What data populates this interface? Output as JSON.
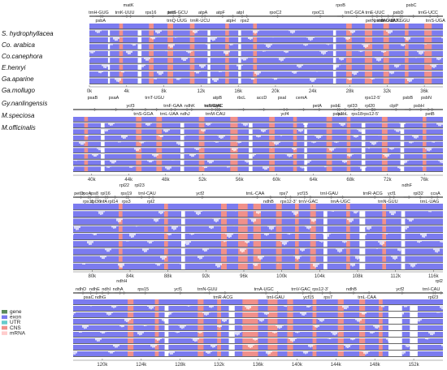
{
  "species": [
    "S. hydrophyllacea",
    "Co. arabica",
    "Co.canephora",
    "E.henryi",
    "Ga.aparine",
    "Ga.mollugo",
    "Gy.nanlingensis",
    "M.speciosa",
    "M.officinalis"
  ],
  "legend": [
    {
      "label": "gene",
      "color": "#5a8a5a"
    },
    {
      "label": "exon",
      "color": "#7b7bef"
    },
    {
      "label": "UTR",
      "color": "#66cccc"
    },
    {
      "label": "CNS",
      "color": "#f0908a"
    },
    {
      "label": "mRNA",
      "color": "#ffcccc"
    }
  ],
  "colors": {
    "exon": "#7b7bef",
    "cns": "#f0908a",
    "white": "#ffffff",
    "arrow": "#888888"
  },
  "panels": [
    {
      "id": "p1",
      "ticks": [
        "0k",
        "4k",
        "8k",
        "12k",
        "16k",
        "20k",
        "24k",
        "28k",
        "32k",
        "36k"
      ],
      "tickValues": [
        0,
        4,
        8,
        12,
        16,
        20,
        24,
        28,
        32,
        36
      ],
      "range": [
        0,
        38
      ],
      "genesTop": [
        {
          "n": "trnH-GUG",
          "at": 1
        },
        {
          "n": "trnK-UUU",
          "at": 3.8
        },
        {
          "n": "rps16",
          "at": 6.6
        },
        {
          "n": "psbI",
          "at": 8.8
        },
        {
          "n": "trnS-GCU",
          "at": 9.5
        },
        {
          "n": "atpA",
          "at": 12.2
        },
        {
          "n": "atpF",
          "at": 14.1
        },
        {
          "n": "atpI",
          "at": 16.2
        },
        {
          "n": "rpoC2",
          "at": 20
        },
        {
          "n": "rpoC1",
          "at": 24.6
        },
        {
          "n": "trnC-GCA",
          "at": 28.5
        },
        {
          "n": "trnE-UUC",
          "at": 30.7
        },
        {
          "n": "psbD",
          "at": 33.2
        },
        {
          "n": "trnG-UCC",
          "at": 36.4
        }
      ],
      "genesUpper": [
        {
          "n": "matK",
          "at": 4.2
        },
        {
          "n": "rpoB",
          "at": 27
        },
        {
          "n": "psbC",
          "at": 34.6
        }
      ],
      "genesBottom": [
        {
          "n": "psbA",
          "at": 1.2
        },
        {
          "n": "trnQ-UUG",
          "at": 9.4
        },
        {
          "n": "trnR-UCU",
          "at": 11.9
        },
        {
          "n": "atpH",
          "at": 15.2
        },
        {
          "n": "rps2",
          "at": 16.7
        },
        {
          "n": "petN",
          "at": 30.2
        },
        {
          "n": "psbM",
          "at": 31.2
        },
        {
          "n": "trnY-GUA",
          "at": 31.9
        },
        {
          "n": "trnD-GUC",
          "at": 32.4
        },
        {
          "n": "trnT-GGU",
          "at": 33.4
        },
        {
          "n": "trnS-UGA",
          "at": 37.2
        }
      ],
      "cns": [
        [
          3.2,
          3.6
        ],
        [
          6.4,
          6.9
        ],
        [
          8.4,
          9.0
        ],
        [
          10.8,
          11.3
        ],
        [
          14.6,
          15.0
        ],
        [
          17.6,
          18.0
        ],
        [
          27.6,
          28.2
        ],
        [
          29.6,
          30.4
        ],
        [
          31.6,
          32.2
        ],
        [
          33.9,
          34.3
        ],
        [
          36.0,
          36.8
        ]
      ],
      "gaps": [
        [
          2.0,
          2.2
        ],
        [
          5.2,
          5.6
        ],
        [
          12.7,
          13.0
        ],
        [
          16.0,
          16.3
        ],
        [
          26.2,
          26.5
        ]
      ]
    },
    {
      "id": "p2",
      "ticks": [
        "40k",
        "44k",
        "48k",
        "52k",
        "56k",
        "60k",
        "64k",
        "68k",
        "72k",
        "76k"
      ],
      "tickValues": [
        40,
        44,
        48,
        52,
        56,
        60,
        64,
        68,
        72,
        76
      ],
      "range": [
        38,
        78
      ],
      "genesTop": [
        {
          "n": "ycf3",
          "at": 44.2
        },
        {
          "n": "trnF-GAA",
          "at": 48.8
        },
        {
          "n": "ndhK",
          "at": 50.6
        },
        {
          "n": "trnV-UAC",
          "at": 53.2
        },
        {
          "n": "ndhC",
          "at": 52.8
        },
        {
          "n": "atpE",
          "at": 53.6
        },
        {
          "n": "petA",
          "at": 64.4
        },
        {
          "n": "psbE",
          "at": 66.4
        },
        {
          "n": "rpl33",
          "at": 68.2
        },
        {
          "n": "rpl20",
          "at": 70.1
        },
        {
          "n": "clpP",
          "at": 72.7
        },
        {
          "n": "psbH",
          "at": 75.4
        }
      ],
      "genesUpper": [
        {
          "n": "psaB",
          "at": 40.1
        },
        {
          "n": "psaA",
          "at": 42.4
        },
        {
          "n": "trnT-UGU",
          "at": 46.8
        },
        {
          "n": "atpB",
          "at": 53.6
        },
        {
          "n": "rbcL",
          "at": 56.2
        },
        {
          "n": "accD",
          "at": 58.4
        },
        {
          "n": "psaI",
          "at": 60.6
        },
        {
          "n": "cemA",
          "at": 62.7
        },
        {
          "n": "rps12-5'",
          "at": 70.4
        },
        {
          "n": "psbB",
          "at": 74.2
        },
        {
          "n": "psbN",
          "at": 76.2
        }
      ],
      "genesBottom": [
        {
          "n": "trnS-GGA",
          "at": 45.6
        },
        {
          "n": "trnL-UAA",
          "at": 48.4
        },
        {
          "n": "ndhJ",
          "at": 50.1
        },
        {
          "n": "trnM-CAU",
          "at": 53.4
        },
        {
          "n": "ycf4",
          "at": 60.9
        },
        {
          "n": "psbJ",
          "at": 66.6
        },
        {
          "n": "psbL",
          "at": 67.2
        },
        {
          "n": "rps18",
          "at": 68.7
        },
        {
          "n": "rps12-5'",
          "at": 70.2
        },
        {
          "n": "petB",
          "at": 76.6
        }
      ],
      "cns": [
        [
          39.2,
          39.6
        ],
        [
          44.8,
          45.4
        ],
        [
          47.0,
          47.6
        ],
        [
          51.6,
          52.2
        ],
        [
          55.0,
          55.8
        ],
        [
          59.2,
          59.8
        ],
        [
          61.8,
          62.2
        ],
        [
          65.4,
          66.0
        ],
        [
          67.6,
          68.0
        ],
        [
          71.4,
          72.0
        ],
        [
          75.8,
          76.2
        ]
      ],
      "gaps": [
        [
          41.0,
          41.4
        ],
        [
          49.6,
          50.0
        ],
        [
          57.0,
          57.4
        ],
        [
          63.0,
          63.3
        ],
        [
          69.2,
          69.6
        ],
        [
          73.4,
          73.8
        ]
      ]
    },
    {
      "id": "p3",
      "ticks": [
        "80k",
        "84k",
        "88k",
        "92k",
        "96k",
        "100k",
        "104k",
        "108k",
        "112k",
        "116k"
      ],
      "tickValues": [
        80,
        84,
        88,
        92,
        96,
        100,
        104,
        108,
        112,
        116
      ],
      "range": [
        78,
        117
      ],
      "genesTop": [
        {
          "n": "petD",
          "at": 78.6
        },
        {
          "n": "rpoA",
          "at": 79.4
        },
        {
          "n": "rps8",
          "at": 80.2
        },
        {
          "n": "rpl16",
          "at": 81.4
        },
        {
          "n": "rps19",
          "at": 83.6
        },
        {
          "n": "trnI-CAU",
          "at": 85.8
        },
        {
          "n": "ycf2",
          "at": 91.4
        },
        {
          "n": "trnL-CAA",
          "at": 97.2
        },
        {
          "n": "rps7",
          "at": 100.2
        },
        {
          "n": "ycf15",
          "at": 102.2
        },
        {
          "n": "trnI-GAU",
          "at": 105
        },
        {
          "n": "trnR-ACG",
          "at": 109.6
        },
        {
          "n": "ycf1",
          "at": 111.6
        },
        {
          "n": "rpl32",
          "at": 114.4
        },
        {
          "n": "ccsA",
          "at": 116.2
        }
      ],
      "genesUpper": [
        {
          "n": "rpl22",
          "at": 83.4
        },
        {
          "n": "rpl23",
          "at": 85
        },
        {
          "n": "ndhF",
          "at": 113.2
        }
      ],
      "genesBottom": [
        {
          "n": "rps11",
          "at": 79.6
        },
        {
          "n": "rpl36",
          "at": 80.4
        },
        {
          "n": "infA",
          "at": 81.2
        },
        {
          "n": "rpl14",
          "at": 82.2
        },
        {
          "n": "rps3",
          "at": 83.6
        },
        {
          "n": "rpl2",
          "at": 86.2
        },
        {
          "n": "ndhB",
          "at": 98.6
        },
        {
          "n": "rps12-3'",
          "at": 100.7
        },
        {
          "n": "trnV-GAC",
          "at": 102.8
        },
        {
          "n": "trnA-UGC",
          "at": 106.2
        },
        {
          "n": "trnN-GUU",
          "at": 111.2
        },
        {
          "n": "trnL-UAG",
          "at": 115.6
        }
      ],
      "cns": [
        [
          82.8,
          83.2
        ],
        [
          87.6,
          88.0
        ],
        [
          93.6,
          94.2
        ],
        [
          95.4,
          96.4
        ],
        [
          97.0,
          97.8
        ],
        [
          99.4,
          100.0
        ],
        [
          101.4,
          101.8
        ],
        [
          103.0,
          103.6
        ],
        [
          106.8,
          107.2
        ],
        [
          110.6,
          111.0
        ]
      ],
      "gaps": [
        [
          89.4,
          89.8
        ],
        [
          104.4,
          104.8
        ],
        [
          108.2,
          108.8
        ],
        [
          112.6,
          113.0
        ]
      ]
    },
    {
      "id": "p4",
      "ticks": [
        "120k",
        "124k",
        "128k",
        "132k",
        "136k",
        "140k",
        "144k",
        "148k",
        "152k"
      ],
      "tickValues": [
        120,
        124,
        128,
        132,
        136,
        140,
        144,
        148,
        152
      ],
      "range": [
        117,
        155
      ],
      "genesTop": [
        {
          "n": "ndhD",
          "at": 117.8
        },
        {
          "n": "ndhE",
          "at": 119.2
        },
        {
          "n": "ndhI",
          "at": 120.4
        },
        {
          "n": "ndhA",
          "at": 121.6
        },
        {
          "n": "rps15",
          "at": 124.2
        },
        {
          "n": "ycf1",
          "at": 127.8
        },
        {
          "n": "trnN-GUU",
          "at": 130.8
        },
        {
          "n": "trnA-UGC",
          "at": 136.6
        },
        {
          "n": "trnV-GAC",
          "at": 140.4
        },
        {
          "n": "rps12-3'",
          "at": 142.4
        },
        {
          "n": "ndhB",
          "at": 145.6
        },
        {
          "n": "ycf2",
          "at": 150.6
        },
        {
          "n": "trnI-CAU",
          "at": 153.8
        }
      ],
      "genesUpper": [
        {
          "n": "ndhH",
          "at": 122
        },
        {
          "n": "rpl2",
          "at": 154.6
        }
      ],
      "genesBottom": [
        {
          "n": "psaC",
          "at": 118.6
        },
        {
          "n": "ndhG",
          "at": 119.8
        },
        {
          "n": "trnR-ACG",
          "at": 132.4
        },
        {
          "n": "trnI-GAU",
          "at": 137.8
        },
        {
          "n": "ycf15",
          "at": 141.2
        },
        {
          "n": "rps7",
          "at": 143.2
        },
        {
          "n": "trnL-CAA",
          "at": 147.2
        },
        {
          "n": "rpl23",
          "at": 154
        }
      ],
      "cns": [
        [
          122.6,
          123.2
        ],
        [
          125.4,
          125.8
        ],
        [
          129.8,
          130.4
        ],
        [
          131.8,
          132.2
        ],
        [
          134.4,
          136.0
        ],
        [
          137.0,
          138.0
        ],
        [
          139.0,
          139.6
        ],
        [
          141.6,
          142.0
        ],
        [
          144.2,
          144.8
        ],
        [
          146.4,
          147.0
        ],
        [
          148.4,
          148.8
        ]
      ],
      "gaps": [
        [
          126.4,
          126.8
        ],
        [
          133.0,
          133.6
        ],
        [
          149.4,
          150.8
        ],
        [
          151.6,
          152.4
        ]
      ]
    }
  ]
}
